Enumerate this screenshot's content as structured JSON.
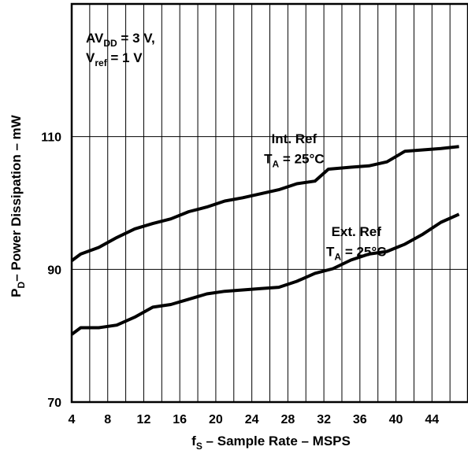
{
  "chart_data": {
    "type": "line",
    "xlabel": {
      "main": "f",
      "sub": "S",
      "rest": " – Sample Rate – MSPS"
    },
    "ylabel": {
      "main": "P",
      "sub": "D",
      "rest": "– Power Dissipation – mW"
    },
    "xlim": [
      4,
      48
    ],
    "ylim": [
      70,
      130
    ],
    "x_ticks": [
      4,
      8,
      12,
      16,
      20,
      24,
      28,
      32,
      36,
      40,
      44
    ],
    "y_ticks": [
      70,
      90,
      110
    ],
    "grid": {
      "vertical_every": 2,
      "horizontal": [
        90,
        110
      ]
    },
    "series": [
      {
        "name": "Int. Ref",
        "x": [
          4,
          5,
          7,
          9,
          11,
          13,
          15,
          17,
          19,
          21,
          23,
          25,
          27,
          29,
          31,
          32.5,
          35,
          37,
          39,
          41,
          43,
          45,
          47
        ],
        "y": [
          91.3,
          92.3,
          93.3,
          94.8,
          96.1,
          96.9,
          97.6,
          98.7,
          99.4,
          100.3,
          100.8,
          101.4,
          102,
          102.9,
          103.3,
          105.1,
          105.4,
          105.6,
          106.2,
          107.8,
          108,
          108.2,
          108.5
        ]
      },
      {
        "name": "Ext. Ref",
        "x": [
          4,
          5,
          7,
          9,
          11,
          13,
          15,
          17,
          19,
          21,
          23,
          25,
          27,
          29,
          31,
          33,
          35,
          37,
          39,
          41,
          43,
          45,
          47
        ],
        "y": [
          80.2,
          81.2,
          81.2,
          81.6,
          82.8,
          84.3,
          84.7,
          85.5,
          86.3,
          86.7,
          86.9,
          87.1,
          87.3,
          88.2,
          89.4,
          90.1,
          91.4,
          92.3,
          92.7,
          93.8,
          95.3,
          97.1,
          98.3
        ]
      }
    ],
    "annotations": [
      {
        "id": "int",
        "line1": "Int. Ref",
        "line2_main": "T",
        "line2_sub": "A",
        "line2_rest": " = 25°C",
        "anchor_x": 28.7,
        "anchor_y": 109,
        "anchor_y2": 106
      },
      {
        "id": "ext",
        "line1": "Ext. Ref",
        "line2_main": "T",
        "line2_sub": "A",
        "line2_rest": " = 25°C",
        "anchor_x": 35.6,
        "anchor_y": 95,
        "anchor_y2": 92
      }
    ],
    "conditions": {
      "line1_main": "AV",
      "line1_sub": "DD",
      "line1_rest": " = 3 V,",
      "line2_main": "V",
      "line2_sub": "ref",
      "line2_rest": " = 1 V"
    }
  },
  "colors": {
    "line": "#000000",
    "grid": "#000000",
    "background": "#ffffff"
  }
}
